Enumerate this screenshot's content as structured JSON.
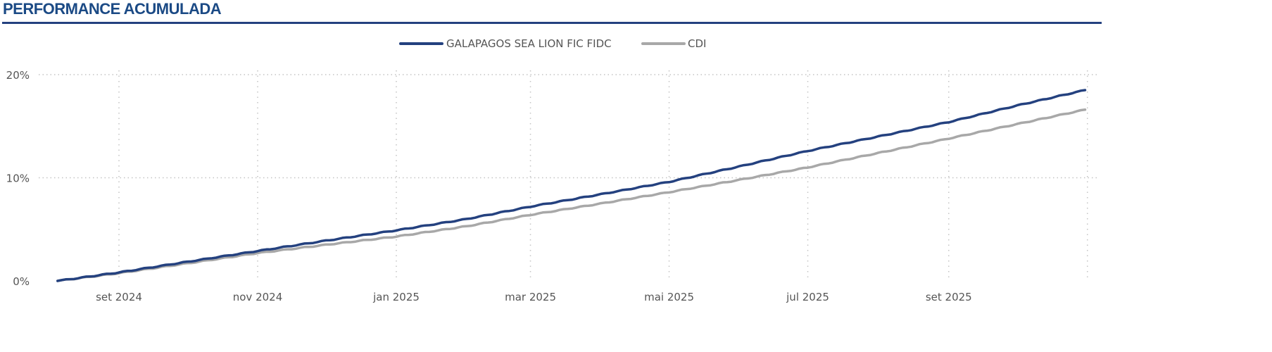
{
  "header": {
    "title": "PERFORMANCE ACUMULADA"
  },
  "chart_data": {
    "type": "line",
    "title": "PERFORMANCE ACUMULADA",
    "xlabel": "",
    "ylabel": "",
    "ylim": [
      0,
      20
    ],
    "yticks": [
      0,
      10,
      20
    ],
    "ytick_labels": [
      "0%",
      "10%",
      "20%"
    ],
    "xticks": [
      "2024-09-01",
      "2024-11-01",
      "2025-01-01",
      "2025-03-01",
      "2025-05-01",
      "2025-07-01",
      "2025-09-01",
      "2025-11-01"
    ],
    "xtick_labels": [
      "set 2024",
      "nov 2024",
      "jan 2025",
      "mar 2025",
      "mai 2025",
      "jul 2025",
      "set 2025",
      ""
    ],
    "grid": true,
    "legend_position": "top-center",
    "x": [
      "2024-08-05",
      "2024-09-01",
      "2024-10-01",
      "2024-11-01",
      "2024-12-01",
      "2025-01-01",
      "2025-02-01",
      "2025-03-01",
      "2025-04-01",
      "2025-05-01",
      "2025-06-01",
      "2025-07-01",
      "2025-08-01",
      "2025-09-01",
      "2025-10-01",
      "2025-10-31"
    ],
    "series": [
      {
        "name": "GALAPAGOS SEA LION FIC FIDC",
        "color": "#24417f",
        "values": [
          0,
          0.82,
          1.85,
          2.9,
          3.9,
          4.9,
          6.0,
          7.2,
          8.4,
          9.6,
          11.1,
          12.6,
          14.0,
          15.4,
          17.0,
          18.5
        ]
      },
      {
        "name": "CDI",
        "color": "#a8a8a8",
        "values": [
          0,
          0.75,
          1.7,
          2.7,
          3.5,
          4.3,
          5.3,
          6.4,
          7.5,
          8.6,
          9.8,
          11.0,
          12.4,
          13.8,
          15.2,
          16.6
        ]
      }
    ]
  }
}
